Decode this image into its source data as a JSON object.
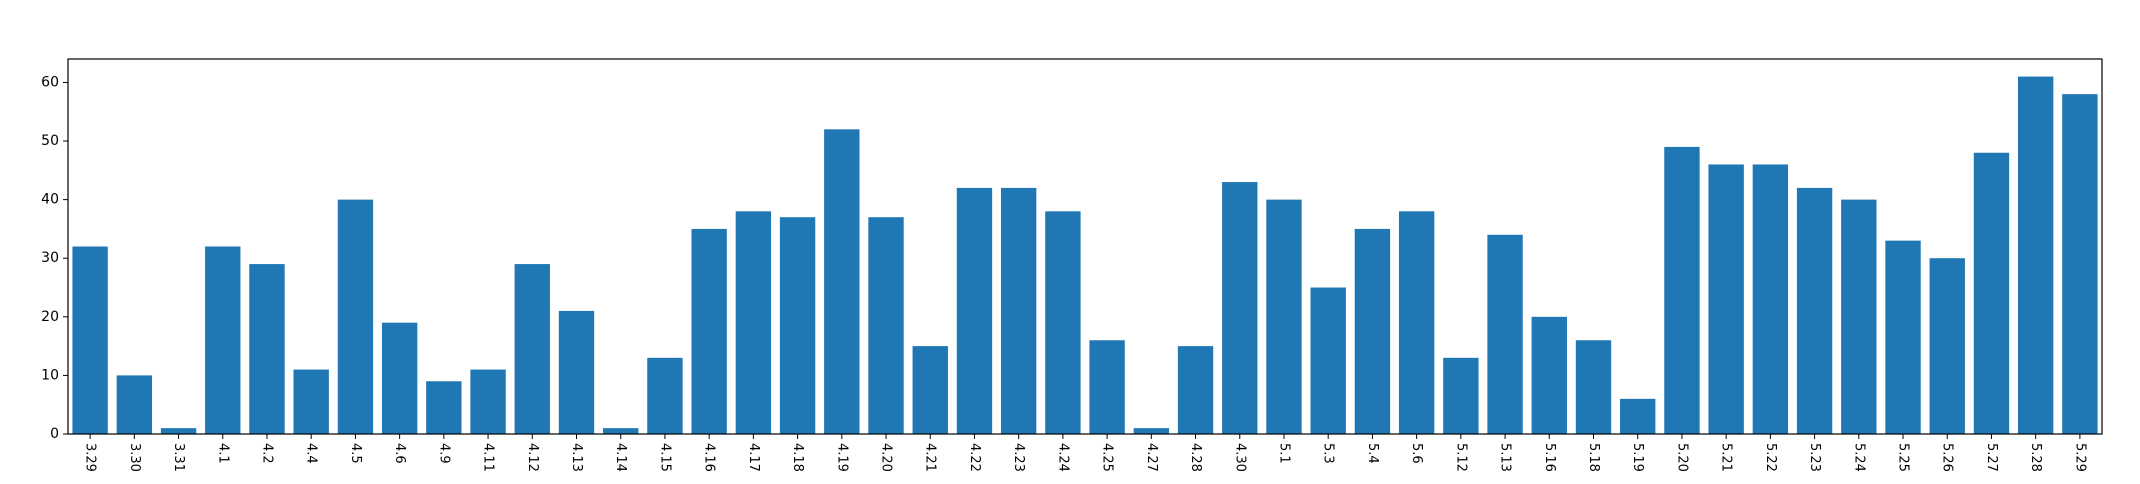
{
  "chart_data": {
    "type": "bar",
    "title": "",
    "xlabel": "",
    "ylabel": "",
    "categories": [
      "3.29",
      "3.30",
      "3.31",
      "4.1",
      "4.2",
      "4.4",
      "4.5",
      "4.6",
      "4.9",
      "4.11",
      "4.12",
      "4.13",
      "4.14",
      "4.15",
      "4.16",
      "4.17",
      "4.18",
      "4.19",
      "4.20",
      "4.21",
      "4.22",
      "4.23",
      "4.24",
      "4.25",
      "4.27",
      "4.28",
      "4.30",
      "5.1",
      "5.3",
      "5.4",
      "5.6",
      "5.12",
      "5.13",
      "5.16",
      "5.18",
      "5.19",
      "5.20",
      "5.21",
      "5.22",
      "5.23",
      "5.24",
      "5.25",
      "5.26",
      "5.27",
      "5.28",
      "5.29"
    ],
    "values": [
      32,
      10,
      1,
      32,
      29,
      11,
      40,
      19,
      9,
      11,
      29,
      21,
      1,
      13,
      35,
      38,
      37,
      52,
      37,
      15,
      42,
      42,
      38,
      16,
      1,
      15,
      43,
      40,
      25,
      35,
      38,
      13,
      34,
      20,
      16,
      6,
      49,
      46,
      46,
      42,
      40,
      33,
      30,
      48,
      61,
      58
    ],
    "ylim": [
      0,
      64
    ],
    "yticks": [
      0,
      10,
      20,
      30,
      40,
      50,
      60
    ],
    "grid": false,
    "bar_color": "#1f77b4",
    "axis_color": "#000000"
  }
}
